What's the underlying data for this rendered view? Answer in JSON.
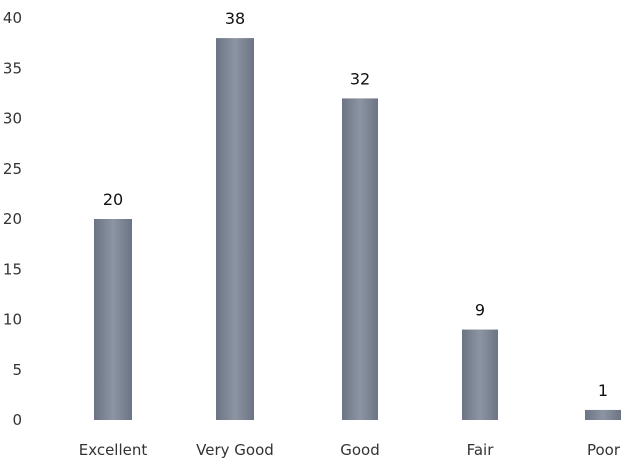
{
  "chart_data": {
    "type": "bar",
    "categories": [
      "Excellent",
      "Very Good",
      "Good",
      "Fair",
      "Poor"
    ],
    "values": [
      20,
      38,
      32,
      9,
      1
    ],
    "data_labels": [
      "20",
      "38",
      "32",
      "9",
      "1"
    ],
    "title": "",
    "xlabel": "",
    "ylabel": "",
    "ylim": [
      0,
      40
    ],
    "yticks": [
      "0",
      "5",
      "10",
      "15",
      "20",
      "25",
      "30",
      "35",
      "40"
    ],
    "grid": false,
    "legend": "none",
    "colors": {
      "bar_dark": "#5a6474",
      "bar_light": "#9aa2b0",
      "text": "#333333"
    }
  }
}
